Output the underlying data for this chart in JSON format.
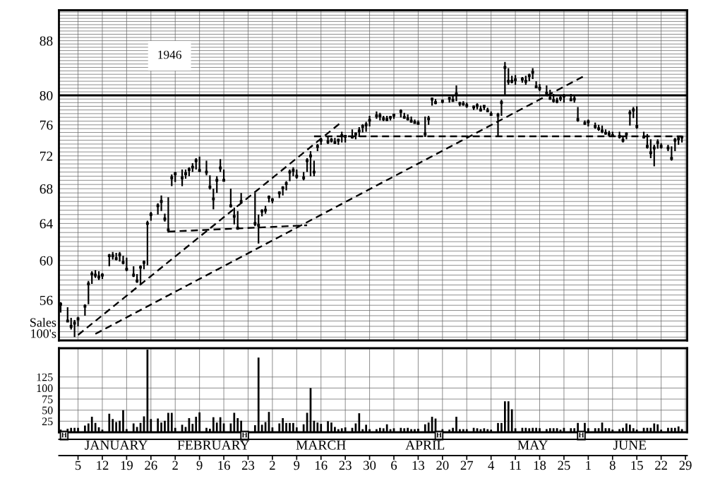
{
  "chart_data": [
    {
      "type": "scatter",
      "annotations": [
        "1946"
      ],
      "log": true,
      "grid": true,
      "tick_labels": "y",
      "xlim": [
        "1945-12-30T12:00",
        "1946-06-29T12:00"
      ],
      "ylim": [
        52.2,
        92.8
      ],
      "yticks": [
        {
          "value": 52.5,
          "label": null
        },
        {
          "value": 53,
          "label": null
        },
        {
          "value": 53.5,
          "label": null
        },
        {
          "value": 54,
          "label": null
        },
        {
          "value": 54.5,
          "label": null
        },
        {
          "value": 55,
          "label": null
        },
        {
          "value": 55.5,
          "label": null
        },
        56,
        {
          "value": 56.5,
          "label": null
        },
        {
          "value": 57,
          "label": null
        },
        {
          "value": 57.5,
          "label": null
        },
        {
          "value": 58,
          "label": null
        },
        {
          "value": 58.5,
          "label": null
        },
        {
          "value": 59,
          "label": null
        },
        {
          "value": 59.5,
          "label": null
        },
        60,
        {
          "value": 60.5,
          "label": null
        },
        {
          "value": 61,
          "label": null
        },
        {
          "value": 61.5,
          "label": null
        },
        {
          "value": 62,
          "label": null
        },
        {
          "value": 62.5,
          "label": null
        },
        {
          "value": 63,
          "label": null
        },
        {
          "value": 63.5,
          "label": null
        },
        64,
        {
          "value": 64.5,
          "label": null
        },
        {
          "value": 65,
          "label": null
        },
        {
          "value": 65.5,
          "label": null
        },
        {
          "value": 66,
          "label": null
        },
        {
          "value": 66.5,
          "label": null
        },
        {
          "value": 67,
          "label": null
        },
        {
          "value": 67.5,
          "label": null
        },
        68,
        {
          "value": 68.5,
          "label": null
        },
        {
          "value": 69,
          "label": null
        },
        {
          "value": 69.5,
          "label": null
        },
        {
          "value": 70,
          "label": null
        },
        {
          "value": 70.5,
          "label": null
        },
        {
          "value": 71,
          "label": null
        },
        {
          "value": 71.5,
          "label": null
        },
        72,
        {
          "value": 72.5,
          "label": null
        },
        {
          "value": 73,
          "label": null
        },
        {
          "value": 73.5,
          "label": null
        },
        {
          "value": 74,
          "label": null
        },
        {
          "value": 74.5,
          "label": null
        },
        {
          "value": 75,
          "label": null
        },
        {
          "value": 75.5,
          "label": null
        },
        76,
        {
          "value": 76.5,
          "label": null
        },
        {
          "value": 77,
          "label": null
        },
        {
          "value": 77.5,
          "label": null
        },
        {
          "value": 78,
          "label": null
        },
        {
          "value": 78.5,
          "label": null
        },
        {
          "value": 79,
          "label": null
        },
        {
          "value": 79.5,
          "label": null
        },
        80,
        {
          "value": 80.5,
          "label": null
        },
        {
          "value": 81,
          "label": null
        },
        {
          "value": 81.5,
          "label": null
        },
        {
          "value": 82,
          "label": null
        },
        {
          "value": 82.5,
          "label": null
        },
        {
          "value": 83,
          "label": null
        },
        {
          "value": 83.5,
          "label": null
        },
        {
          "value": 84,
          "label": null
        },
        {
          "value": 84.5,
          "label": null
        },
        {
          "value": 85,
          "label": null
        },
        {
          "value": 85.5,
          "label": null
        },
        {
          "value": 86,
          "label": null
        },
        {
          "value": 86.5,
          "label": null
        },
        {
          "value": 87,
          "label": null
        },
        {
          "value": 87.5,
          "label": null
        },
        88,
        {
          "value": 88.5,
          "label": null
        },
        {
          "value": 89,
          "label": null
        },
        {
          "value": 89.5,
          "label": null
        },
        {
          "value": 90,
          "label": null
        },
        {
          "value": 90.5,
          "label": null
        },
        {
          "value": 91,
          "label": null
        },
        {
          "value": 91.5,
          "label": null
        },
        {
          "value": 92,
          "label": null
        },
        {
          "value": 92.5,
          "label": null
        }
      ],
      "ref_lines": [
        {
          "axis": "y",
          "value": 80,
          "color": "#000000"
        }
      ],
      "series": [
        {
          "type": "scatter",
          "color": "#000000",
          "marker": "square",
          "x": [
            "1945-12-31",
            "1946-01-02",
            "1946-01-03",
            "1946-01-04",
            "1946-01-05",
            "1946-01-07",
            "1946-01-08",
            "1946-01-09",
            "1946-01-10",
            "1946-01-11",
            "1946-01-12",
            "1946-01-14",
            "1946-01-15",
            "1946-01-16",
            "1946-01-17",
            "1946-01-18",
            "1946-01-19",
            "1946-01-21",
            "1946-01-22",
            "1946-01-23",
            "1946-01-24",
            "1946-01-25",
            "1946-01-26",
            "1946-01-28",
            "1946-01-29",
            "1946-01-30",
            "1946-01-31",
            "1946-02-01",
            "1946-02-02",
            "1946-02-04",
            "1946-02-05",
            "1946-02-06",
            "1946-02-07",
            "1946-02-08",
            "1946-02-09",
            "1946-02-11",
            "1946-02-12",
            "1946-02-13",
            "1946-02-14",
            "1946-02-15",
            "1946-02-16",
            "1946-02-18",
            "1946-02-19",
            "1946-02-20",
            "1946-02-21",
            "1946-02-25",
            "1946-02-26",
            "1946-02-27",
            "1946-02-28",
            "1946-03-01",
            "1946-03-02",
            "1946-03-04",
            "1946-03-05",
            "1946-03-06",
            "1946-03-07",
            "1946-03-08",
            "1946-03-09",
            "1946-03-11",
            "1946-03-12",
            "1946-03-13",
            "1946-03-14",
            "1946-03-15",
            "1946-03-16",
            "1946-03-18",
            "1946-03-19",
            "1946-03-20",
            "1946-03-21",
            "1946-03-22",
            "1946-03-23",
            "1946-03-25",
            "1946-03-26",
            "1946-03-27",
            "1946-03-28",
            "1946-03-29",
            "1946-03-30",
            "1946-04-01",
            "1946-04-02",
            "1946-04-03",
            "1946-04-04",
            "1946-04-05",
            "1946-04-06",
            "1946-04-08",
            "1946-04-09",
            "1946-04-10",
            "1946-04-11",
            "1946-04-12",
            "1946-04-13",
            "1946-04-15",
            "1946-04-16",
            "1946-04-17",
            "1946-04-18",
            "1946-04-20",
            "1946-04-22",
            "1946-04-23",
            "1946-04-24",
            "1946-04-25",
            "1946-04-26",
            "1946-04-27",
            "1946-04-29",
            "1946-04-30",
            "1946-05-01",
            "1946-05-02",
            "1946-05-03",
            "1946-05-04",
            "1946-05-06",
            "1946-05-07",
            "1946-05-08",
            "1946-05-09",
            "1946-05-10",
            "1946-05-11",
            "1946-05-13",
            "1946-05-14",
            "1946-05-15",
            "1946-05-16",
            "1946-05-17",
            "1946-05-18",
            "1946-05-20",
            "1946-05-21",
            "1946-05-22",
            "1946-05-23",
            "1946-05-24",
            "1946-05-25",
            "1946-05-27",
            "1946-05-28",
            "1946-05-29",
            "1946-05-31",
            "1946-06-01",
            "1946-06-03",
            "1946-06-04",
            "1946-06-05",
            "1946-06-06",
            "1946-06-07",
            "1946-06-08",
            "1946-06-10",
            "1946-06-11",
            "1946-06-12",
            "1946-06-13",
            "1946-06-14",
            "1946-06-15",
            "1946-06-17",
            "1946-06-18",
            "1946-06-19",
            "1946-06-20",
            "1946-06-21",
            "1946-06-22",
            "1946-06-24",
            "1946-06-25",
            "1946-06-26",
            "1946-06-27",
            "1946-06-28"
          ],
          "values": [
            55.6,
            54.0,
            53.5,
            53.8,
            54.2,
            55.4,
            57.6,
            58.6,
            58.5,
            58.3,
            58.5,
            60.5,
            60.5,
            60.2,
            60.6,
            59.8,
            59.1,
            58.5,
            57.9,
            59.3,
            59.8,
            64.0,
            65.0,
            66.0,
            66.5,
            64.5,
            63.3,
            69.3,
            69.8,
            69.3,
            69.8,
            70.3,
            70.6,
            71.4,
            70.2,
            70.0,
            68.2,
            66.8,
            69.0,
            70.5,
            69.0,
            66.0,
            64.8,
            63.5,
            66.5,
            64.0,
            63.8,
            65.4,
            65.5,
            67.0,
            66.7,
            67.5,
            68.1,
            68.6,
            70.0,
            70.2,
            69.5,
            69.3,
            71.4,
            72.0,
            70.0,
            73.2,
            74.0,
            73.8,
            74.0,
            73.7,
            74.0,
            74.6,
            74.5,
            74.4,
            74.8,
            75.2,
            75.8,
            76.0,
            76.6,
            77.2,
            77.2,
            76.8,
            76.7,
            77.0,
            77.3,
            77.8,
            77.0,
            76.8,
            76.5,
            76.3,
            76.2,
            74.8,
            76.8,
            79.5,
            79.0,
            79.2,
            79.6,
            79.3,
            80.2,
            78.9,
            78.8,
            78.6,
            78.4,
            78.6,
            78.0,
            78.5,
            77.9,
            77.4,
            77.3,
            79.0,
            84.0,
            82.0,
            82.0,
            82.2,
            82.3,
            82.0,
            82.8,
            83.3,
            81.2,
            81.0,
            80.3,
            79.6,
            79.3,
            79.2,
            79.6,
            79.9,
            79.4,
            79.5,
            76.7,
            76.2,
            76.4,
            75.8,
            75.5,
            75.2,
            74.9,
            74.8,
            74.6,
            74.5,
            74.0,
            74.8,
            77.6,
            78.0,
            75.8,
            74.4,
            73.2,
            72.4,
            73.0,
            73.7,
            73.2,
            73.0,
            71.7,
            74.0,
            74.2,
            74.4
          ],
          "errors": [
            [
              54.8,
              55.8
            ],
            [
              53.9,
              55.3
            ],
            [
              53.2,
              54.3
            ],
            [
              52.5,
              54.1
            ],
            [
              53.5,
              54.4
            ],
            [
              54.5,
              55.6
            ],
            [
              55.6,
              57.9
            ],
            [
              57.6,
              58.9
            ],
            [
              58.2,
              59.0
            ],
            [
              58.0,
              58.9
            ],
            [
              58.1,
              58.7
            ],
            [
              59.4,
              60.7
            ],
            [
              60.1,
              60.9
            ],
            [
              60.0,
              60.8
            ],
            [
              59.9,
              60.9
            ],
            [
              59.6,
              60.5
            ],
            [
              58.9,
              60.3
            ],
            [
              58.3,
              59.4
            ],
            [
              57.7,
              58.6
            ],
            [
              57.5,
              59.5
            ],
            [
              59.1,
              60.0
            ],
            [
              59.5,
              64.3
            ],
            [
              64.3,
              65.3
            ],
            [
              65.0,
              66.3
            ],
            [
              65.4,
              67.2
            ],
            [
              64.2,
              65.1
            ],
            [
              63.0,
              67.0
            ],
            [
              68.3,
              69.7
            ],
            [
              68.8,
              70.0
            ],
            [
              68.3,
              70.3
            ],
            [
              69.2,
              70.3
            ],
            [
              69.5,
              70.6
            ],
            [
              70.0,
              71.1
            ],
            [
              70.3,
              71.7
            ],
            [
              70.0,
              71.9
            ],
            [
              69.6,
              71.4
            ],
            [
              67.9,
              69.6
            ],
            [
              65.6,
              68.0
            ],
            [
              67.5,
              69.5
            ],
            [
              70.0,
              71.6
            ],
            [
              68.9,
              70.3
            ],
            [
              65.8,
              68.0
            ],
            [
              63.9,
              65.8
            ],
            [
              63.3,
              65.4
            ],
            [
              66.3,
              67.5
            ],
            [
              63.7,
              67.5
            ],
            [
              61.8,
              65.0
            ],
            [
              64.8,
              65.6
            ],
            [
              65.1,
              66.0
            ],
            [
              66.4,
              67.2
            ],
            [
              66.3,
              66.9
            ],
            [
              66.9,
              67.7
            ],
            [
              67.2,
              68.3
            ],
            [
              67.8,
              68.9
            ],
            [
              68.9,
              70.3
            ],
            [
              69.5,
              70.6
            ],
            [
              69.2,
              70.3
            ],
            [
              69.0,
              70.0
            ],
            [
              70.0,
              71.7
            ],
            [
              69.5,
              72.6
            ],
            [
              69.5,
              71.4
            ],
            [
              72.6,
              73.5
            ],
            [
              73.4,
              74.3
            ],
            [
              73.5,
              74.6
            ],
            [
              73.7,
              74.3
            ],
            [
              73.5,
              74.3
            ],
            [
              73.4,
              74.2
            ],
            [
              73.7,
              75.1
            ],
            [
              73.7,
              74.6
            ],
            [
              74.2,
              75.4
            ],
            [
              74.1,
              75.0
            ],
            [
              74.4,
              75.7
            ],
            [
              75.0,
              76.1
            ],
            [
              75.1,
              76.4
            ],
            [
              75.8,
              77.2
            ],
            [
              76.8,
              77.8
            ],
            [
              76.6,
              77.6
            ],
            [
              76.5,
              77.2
            ],
            [
              76.5,
              77.2
            ],
            [
              76.6,
              77.2
            ],
            [
              76.8,
              77.5
            ],
            [
              77.0,
              78.1
            ],
            [
              76.8,
              77.6
            ],
            [
              76.6,
              77.4
            ],
            [
              76.3,
              77.1
            ],
            [
              76.2,
              76.7
            ],
            [
              76.0,
              76.6
            ],
            [
              74.4,
              77.1
            ],
            [
              76.0,
              77.2
            ],
            [
              78.6,
              79.7
            ],
            [
              78.8,
              79.5
            ],
            [
              78.9,
              79.4
            ],
            [
              79.0,
              79.8
            ],
            [
              79.1,
              79.9
            ],
            [
              79.2,
              81.4
            ],
            [
              78.5,
              79.1
            ],
            [
              78.6,
              79.2
            ],
            [
              78.3,
              79.0
            ],
            [
              78.0,
              78.6
            ],
            [
              78.1,
              78.9
            ],
            [
              77.8,
              78.6
            ],
            [
              78.0,
              78.6
            ],
            [
              77.7,
              78.3
            ],
            [
              77.2,
              77.8
            ],
            [
              74.6,
              77.6
            ],
            [
              77.2,
              79.4
            ],
            [
              80.0,
              84.8
            ],
            [
              81.5,
              83.9
            ],
            [
              81.7,
              82.8
            ],
            [
              81.5,
              82.9
            ],
            [
              81.8,
              82.6
            ],
            [
              81.5,
              82.8
            ],
            [
              82.0,
              83.1
            ],
            [
              82.3,
              83.9
            ],
            [
              81.0,
              82.0
            ],
            [
              80.6,
              81.6
            ],
            [
              79.9,
              81.4
            ],
            [
              79.4,
              80.8
            ],
            [
              79.0,
              80.2
            ],
            [
              78.9,
              79.7
            ],
            [
              79.2,
              79.9
            ],
            [
              79.0,
              80.2
            ],
            [
              79.2,
              80.2
            ],
            [
              79.0,
              79.9
            ],
            [
              76.4,
              78.4
            ],
            [
              76.0,
              76.6
            ],
            [
              75.8,
              76.7
            ],
            [
              75.5,
              76.3
            ],
            [
              75.2,
              76.0
            ],
            [
              74.9,
              75.9
            ],
            [
              74.7,
              75.4
            ],
            [
              74.5,
              75.2
            ],
            [
              74.4,
              75.1
            ],
            [
              74.2,
              75.1
            ],
            [
              73.7,
              74.6
            ],
            [
              74.1,
              75.0
            ],
            [
              75.9,
              78.0
            ],
            [
              76.9,
              78.4
            ],
            [
              75.5,
              78.5
            ],
            [
              74.2,
              75.1
            ],
            [
              72.9,
              74.8
            ],
            [
              71.7,
              74.1
            ],
            [
              70.7,
              73.4
            ],
            [
              72.9,
              74.1
            ],
            [
              72.9,
              73.6
            ],
            [
              72.6,
              73.4
            ],
            [
              71.4,
              73.2
            ],
            [
              72.6,
              74.3
            ],
            [
              73.4,
              74.5
            ],
            [
              73.7,
              74.6
            ]
          ]
        },
        {
          "type": "line",
          "x": [
            "1946-01-05",
            "1946-03-22"
          ],
          "values": [
            52.7,
            76.4
          ],
          "color": "#000000",
          "line_style": "dashed"
        },
        {
          "type": "line",
          "x": [
            "1946-01-10",
            "1946-05-31"
          ],
          "values": [
            52.8,
            82.8
          ],
          "color": "#000000",
          "line_style": "dashed"
        },
        {
          "type": "line",
          "x": [
            "1946-01-31",
            "1946-03-12"
          ],
          "values": [
            63.1,
            63.8
          ],
          "color": "#000000",
          "line_style": "dashed"
        },
        {
          "type": "line",
          "x": [
            "1946-03-14",
            "1946-06-28"
          ],
          "values": [
            74.5,
            74.5
          ],
          "color": "#000000",
          "line_style": "dashed"
        }
      ]
    },
    {
      "type": "bar",
      "ylabel": "Sales\n100's",
      "color": "#000000",
      "grid": true,
      "annotations": [
        {
          "text": "H",
          "x": "1946-01-01",
          "y": 0
        },
        {
          "text": "H",
          "x": "1946-02-22",
          "y": 0
        },
        {
          "text": "H",
          "x": "1946-04-19",
          "y": 0
        },
        {
          "text": "H",
          "x": "1946-05-30",
          "y": 0
        }
      ],
      "xlim": [
        "1945-12-30T12:00",
        "1946-06-29T12:00"
      ],
      "ylim": [
        0,
        190
      ],
      "xticks": [
        {
          "value": "1946-01-05",
          "label": "5"
        },
        {
          "value": "1946-01-12",
          "label": "12"
        },
        {
          "value": "1946-01-19",
          "label": "19"
        },
        {
          "value": "1946-01-26",
          "label": "26"
        },
        {
          "value": "1946-02-02",
          "label": "2"
        },
        {
          "value": "1946-02-09",
          "label": "9"
        },
        {
          "value": "1946-02-16",
          "label": "16"
        },
        {
          "value": "1946-02-23",
          "label": "23"
        },
        {
          "value": "1946-03-02",
          "label": "2"
        },
        {
          "value": "1946-03-09",
          "label": "9"
        },
        {
          "value": "1946-03-16",
          "label": "16"
        },
        {
          "value": "1946-03-23",
          "label": "23"
        },
        {
          "value": "1946-03-30",
          "label": "30"
        },
        {
          "value": "1946-04-06",
          "label": "6"
        },
        {
          "value": "1946-04-13",
          "label": "13"
        },
        {
          "value": "1946-04-20",
          "label": "20"
        },
        {
          "value": "1946-04-27",
          "label": "27"
        },
        {
          "value": "1946-05-04",
          "label": "4"
        },
        {
          "value": "1946-05-11",
          "label": "11"
        },
        {
          "value": "1946-05-18",
          "label": "18"
        },
        {
          "value": "1946-05-25",
          "label": "25"
        },
        {
          "value": "1946-06-01",
          "label": "1"
        },
        {
          "value": "1946-06-08",
          "label": "8"
        },
        {
          "value": "1946-06-15",
          "label": "15"
        },
        {
          "value": "1946-06-22",
          "label": "22"
        },
        {
          "value": "1946-06-29",
          "label": "29"
        }
      ],
      "yticks": [
        25,
        50,
        75,
        100,
        125
      ],
      "x2lim": [
        "1945-12-30T12:00",
        "1946-06-29T12:00"
      ],
      "x2ticks": [
        {
          "value": "1946-01-16",
          "label": "JANUARY"
        },
        {
          "value": "1946-02-13",
          "label": "FEBRUARY"
        },
        {
          "value": "1946-03-16",
          "label": "MARCH"
        },
        {
          "value": "1946-04-15",
          "label": "APRIL"
        },
        {
          "value": "1946-05-16",
          "label": "MAY"
        },
        {
          "value": "1946-06-13",
          "label": "JUNE"
        }
      ],
      "x": [
        "1945-12-31",
        "1946-01-02",
        "1946-01-03",
        "1946-01-04",
        "1946-01-05",
        "1946-01-07",
        "1946-01-08",
        "1946-01-09",
        "1946-01-10",
        "1946-01-11",
        "1946-01-12",
        "1946-01-14",
        "1946-01-15",
        "1946-01-16",
        "1946-01-17",
        "1946-01-18",
        "1946-01-19",
        "1946-01-21",
        "1946-01-22",
        "1946-01-23",
        "1946-01-24",
        "1946-01-25",
        "1946-01-26",
        "1946-01-28",
        "1946-01-29",
        "1946-01-30",
        "1946-01-31",
        "1946-02-01",
        "1946-02-02",
        "1946-02-04",
        "1946-02-05",
        "1946-02-06",
        "1946-02-07",
        "1946-02-08",
        "1946-02-09",
        "1946-02-11",
        "1946-02-12",
        "1946-02-13",
        "1946-02-14",
        "1946-02-15",
        "1946-02-16",
        "1946-02-18",
        "1946-02-19",
        "1946-02-20",
        "1946-02-21",
        "1946-02-25",
        "1946-02-26",
        "1946-02-27",
        "1946-02-28",
        "1946-03-01",
        "1946-03-02",
        "1946-03-04",
        "1946-03-05",
        "1946-03-06",
        "1946-03-07",
        "1946-03-08",
        "1946-03-09",
        "1946-03-11",
        "1946-03-12",
        "1946-03-13",
        "1946-03-14",
        "1946-03-15",
        "1946-03-16",
        "1946-03-18",
        "1946-03-19",
        "1946-03-20",
        "1946-03-21",
        "1946-03-22",
        "1946-03-23",
        "1946-03-25",
        "1946-03-26",
        "1946-03-27",
        "1946-03-28",
        "1946-03-29",
        "1946-03-30",
        "1946-04-01",
        "1946-04-02",
        "1946-04-03",
        "1946-04-04",
        "1946-04-05",
        "1946-04-06",
        "1946-04-08",
        "1946-04-09",
        "1946-04-10",
        "1946-04-11",
        "1946-04-12",
        "1946-04-13",
        "1946-04-15",
        "1946-04-16",
        "1946-04-17",
        "1946-04-18",
        "1946-04-20",
        "1946-04-22",
        "1946-04-23",
        "1946-04-24",
        "1946-04-25",
        "1946-04-26",
        "1946-04-27",
        "1946-04-29",
        "1946-04-30",
        "1946-05-01",
        "1946-05-02",
        "1946-05-03",
        "1946-05-04",
        "1946-05-06",
        "1946-05-07",
        "1946-05-08",
        "1946-05-09",
        "1946-05-10",
        "1946-05-11",
        "1946-05-13",
        "1946-05-14",
        "1946-05-15",
        "1946-05-16",
        "1946-05-17",
        "1946-05-18",
        "1946-05-20",
        "1946-05-21",
        "1946-05-22",
        "1946-05-23",
        "1946-05-24",
        "1946-05-25",
        "1946-05-27",
        "1946-05-28",
        "1946-05-29",
        "1946-05-31",
        "1946-06-01",
        "1946-06-03",
        "1946-06-04",
        "1946-06-05",
        "1946-06-06",
        "1946-06-07",
        "1946-06-08",
        "1946-06-10",
        "1946-06-11",
        "1946-06-12",
        "1946-06-13",
        "1946-06-14",
        "1946-06-15",
        "1946-06-17",
        "1946-06-18",
        "1946-06-19",
        "1946-06-20",
        "1946-06-21",
        "1946-06-22",
        "1946-06-24",
        "1946-06-25",
        "1946-06-26",
        "1946-06-27",
        "1946-06-28"
      ],
      "values": [
        6,
        8,
        10,
        10,
        10,
        15,
        20,
        35,
        21,
        11,
        6,
        42,
        30,
        23,
        26,
        50,
        7,
        20,
        12,
        21,
        36,
        187,
        30,
        31,
        22,
        26,
        44,
        44,
        10,
        17,
        12,
        32,
        19,
        35,
        45,
        10,
        8,
        34,
        22,
        34,
        20,
        20,
        44,
        32,
        26,
        16,
        169,
        17,
        23,
        46,
        11,
        20,
        32,
        21,
        21,
        21,
        11,
        18,
        44,
        100,
        26,
        22,
        19,
        25,
        22,
        12,
        7,
        9,
        11,
        10,
        20,
        43,
        7,
        17,
        7,
        7,
        10,
        9,
        18,
        7,
        9,
        10,
        9,
        10,
        7,
        7,
        8,
        18,
        22,
        35,
        31,
        7,
        6,
        10,
        35,
        7,
        7,
        7,
        10,
        9,
        7,
        9,
        7,
        6,
        21,
        21,
        70,
        70,
        52,
        9,
        10,
        10,
        9,
        10,
        10,
        9,
        7,
        9,
        9,
        9,
        6,
        10,
        9,
        9,
        21,
        21,
        9,
        9,
        9,
        22,
        9,
        9,
        6,
        7,
        10,
        20,
        17,
        9,
        6,
        10,
        10,
        10,
        20,
        18,
        6,
        10,
        10,
        10,
        13,
        7
      ]
    }
  ]
}
